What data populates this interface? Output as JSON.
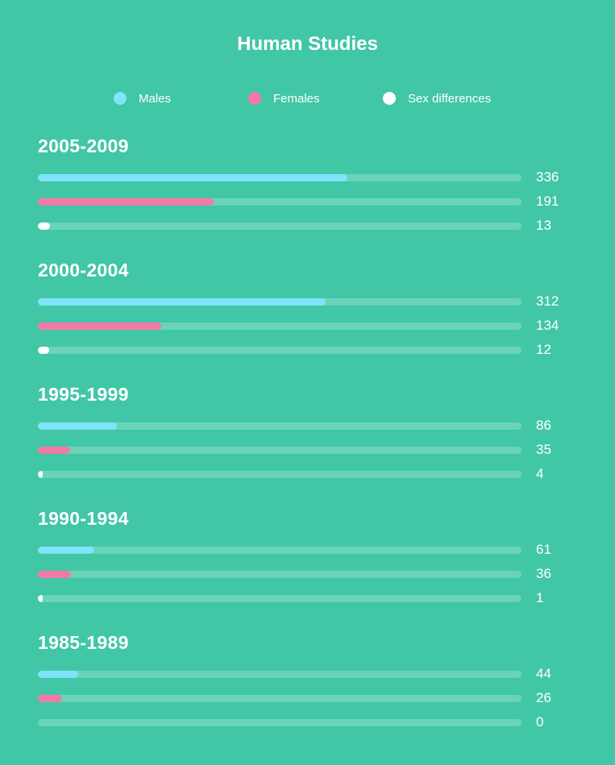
{
  "chart_data": {
    "type": "bar",
    "orientation": "horizontal",
    "title": "Human Studies",
    "categories": [
      "2005-2009",
      "2000-2004",
      "1995-1999",
      "1990-1994",
      "1985-1989"
    ],
    "series": [
      {
        "name": "Males",
        "color": "#7ee3fb",
        "values": [
          336,
          312,
          86,
          61,
          44
        ]
      },
      {
        "name": "Females",
        "color": "#f47aa5",
        "values": [
          191,
          134,
          35,
          36,
          26
        ]
      },
      {
        "name": "Sex differences",
        "color": "#ffffff",
        "values": [
          13,
          12,
          4,
          1,
          0
        ]
      }
    ],
    "xlim": [
      0,
      525
    ],
    "legend": "top",
    "grid": false
  },
  "colors": {
    "background": "#41c7a5",
    "track": "rgba(255,255,255,0.22)"
  }
}
